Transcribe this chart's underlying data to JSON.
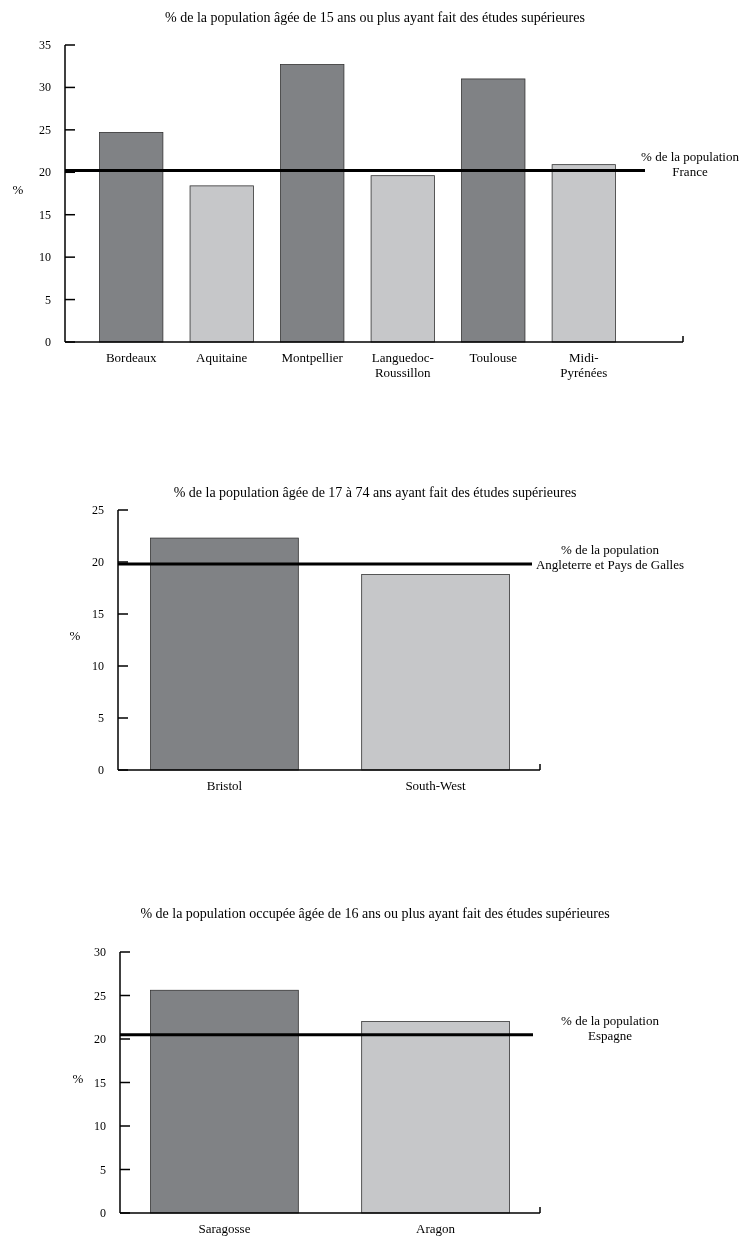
{
  "chart_data": [
    {
      "type": "bar",
      "title": "% de la population âgée de 15 ans ou plus ayant fait des études supérieures",
      "ylabel": "%",
      "categories": [
        "Bordeaux",
        "Aquitaine",
        "Montpellier",
        "Languedoc-\nRoussillon",
        "Toulouse",
        "Midi-\nPyrénées"
      ],
      "values": [
        24.7,
        18.4,
        32.7,
        19.6,
        31.0,
        20.9
      ],
      "colors": [
        "#808285",
        "#c6c7c9",
        "#808285",
        "#c6c7c9",
        "#808285",
        "#c6c7c9"
      ],
      "ylim": [
        0,
        35
      ],
      "yticks": [
        0,
        5,
        10,
        15,
        20,
        25,
        30,
        35
      ],
      "grid": false,
      "ref_lines": [
        {
          "axis": "y",
          "value": 20.2,
          "label": "% de la population\nFrance",
          "color": "#000000"
        }
      ]
    },
    {
      "type": "bar",
      "title": "% de la population âgée de 17 à 74 ans ayant fait des études supérieures",
      "ylabel": "%",
      "categories": [
        "Bristol",
        "South-West"
      ],
      "values": [
        22.3,
        18.8
      ],
      "colors": [
        "#808285",
        "#c6c7c9"
      ],
      "ylim": [
        0,
        25
      ],
      "yticks": [
        0,
        5,
        10,
        15,
        20,
        25
      ],
      "grid": false,
      "ref_lines": [
        {
          "axis": "y",
          "value": 19.8,
          "label": "% de la population\nAngleterre et Pays de Galles",
          "color": "#000000"
        }
      ]
    },
    {
      "type": "bar",
      "title": "% de la population occupée âgée de 16 ans ou plus ayant fait des études supérieures",
      "ylabel": "%",
      "categories": [
        "Saragosse",
        "Aragon"
      ],
      "values": [
        25.6,
        22.0
      ],
      "colors": [
        "#808285",
        "#c6c7c9"
      ],
      "ylim": [
        0,
        30
      ],
      "yticks": [
        0,
        5,
        10,
        15,
        20,
        25,
        30
      ],
      "grid": false,
      "ref_lines": [
        {
          "axis": "y",
          "value": 20.5,
          "label": "% de la population\nEspagne",
          "color": "#000000"
        }
      ]
    }
  ]
}
